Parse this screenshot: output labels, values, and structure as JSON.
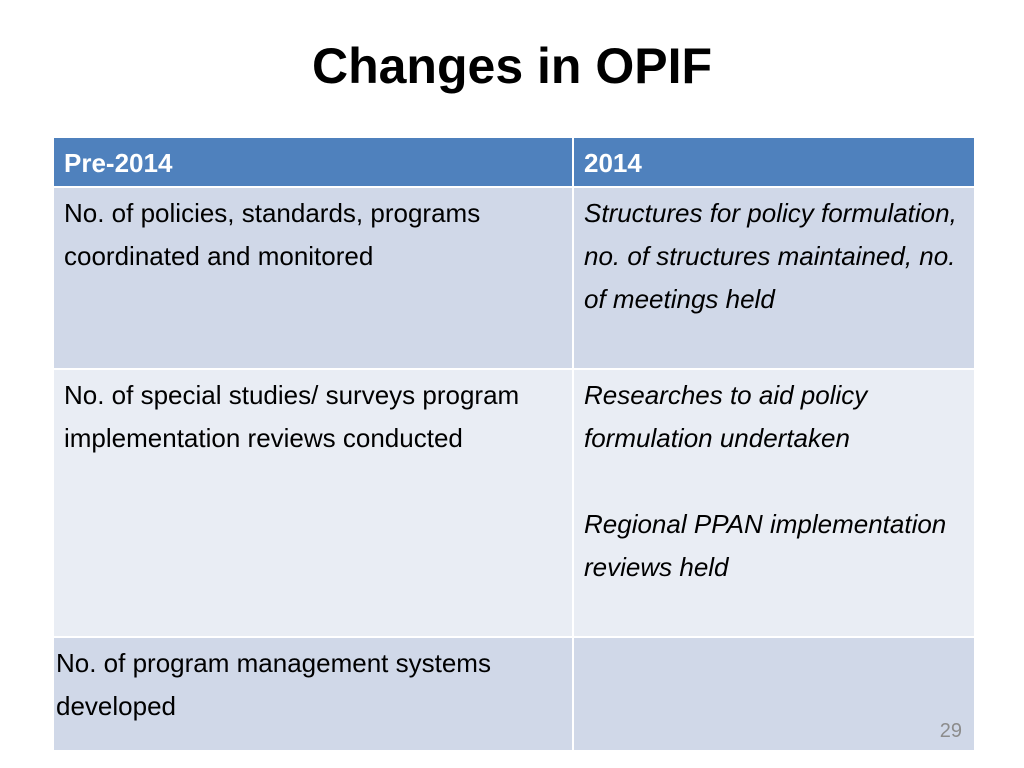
{
  "slide": {
    "title": "Changes in OPIF",
    "page_number": "29"
  },
  "table": {
    "headers": [
      "Pre-2014",
      "2014"
    ],
    "rows": [
      {
        "pre": "No. of policies, standards, programs coordinated and monitored",
        "new_lines": [
          "Structures for policy formulation, no. of structures maintained, no. of meetings held"
        ]
      },
      {
        "pre": "No. of special studies/ surveys program implementation reviews conducted",
        "new_lines": [
          "Researches to aid policy formulation undertaken",
          "Regional PPAN implementation reviews held"
        ]
      },
      {
        "pre": "No. of program management systems developed",
        "new_lines": [
          ""
        ]
      }
    ]
  },
  "colors": {
    "header_bg": "#4f81bd",
    "row_dark": "#d0d8e8",
    "row_light": "#e9edf4"
  }
}
